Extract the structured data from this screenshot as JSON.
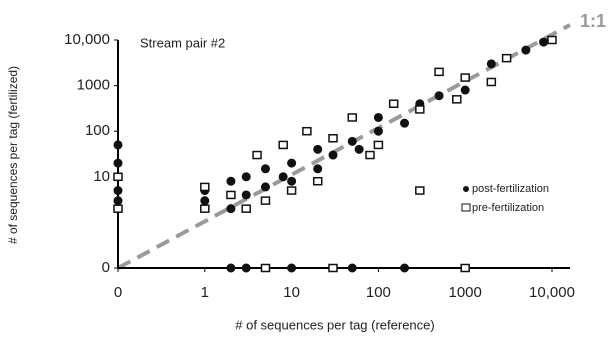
{
  "chart_data": {
    "type": "scatter",
    "annotation": "Stream pair #2",
    "reference_label": "1:1",
    "x_label": "# of sequences per tag (reference)",
    "y_label": "# of sequences per tag (fertilized)",
    "log_scale": true,
    "legend": "right",
    "xlim": [
      0,
      10000
    ],
    "ylim": [
      0,
      10000
    ],
    "xticks": [
      0,
      1,
      10,
      100,
      1000,
      {
        "value": 10000,
        "label": "10,000"
      }
    ],
    "yticks": [
      0,
      10,
      100,
      1000,
      {
        "value": 10000,
        "label": "10,000"
      }
    ],
    "series": [
      {
        "name": "post-fertilization",
        "color": "#111111",
        "marker": "circle",
        "x": [
          1,
          1,
          2,
          2,
          3,
          3,
          5,
          5,
          8,
          10,
          10,
          20,
          20,
          30,
          50,
          60,
          100,
          100,
          200,
          300,
          500,
          1000,
          2000,
          5000,
          8000,
          0,
          0,
          0,
          3,
          10,
          50,
          200,
          2,
          0
        ],
        "values": [
          3,
          5,
          2,
          8,
          4,
          10,
          6,
          15,
          10,
          8,
          20,
          15,
          40,
          30,
          60,
          40,
          100,
          200,
          150,
          400,
          600,
          800,
          3000,
          6000,
          9000,
          5,
          20,
          50,
          0,
          0,
          0,
          0,
          0,
          3
        ]
      },
      {
        "name": "pre-fertilization",
        "color": "#111111",
        "marker": "square",
        "x": [
          1,
          1,
          2,
          3,
          4,
          5,
          8,
          10,
          15,
          20,
          30,
          50,
          80,
          100,
          150,
          300,
          500,
          800,
          1000,
          2000,
          3000,
          10000,
          0,
          0,
          5,
          30,
          1000,
          300
        ],
        "values": [
          2,
          6,
          4,
          2,
          30,
          3,
          50,
          5,
          100,
          8,
          70,
          200,
          30,
          50,
          400,
          300,
          2000,
          500,
          1500,
          1200,
          4000,
          10000,
          10,
          2,
          0,
          0,
          0,
          5
        ]
      }
    ]
  }
}
